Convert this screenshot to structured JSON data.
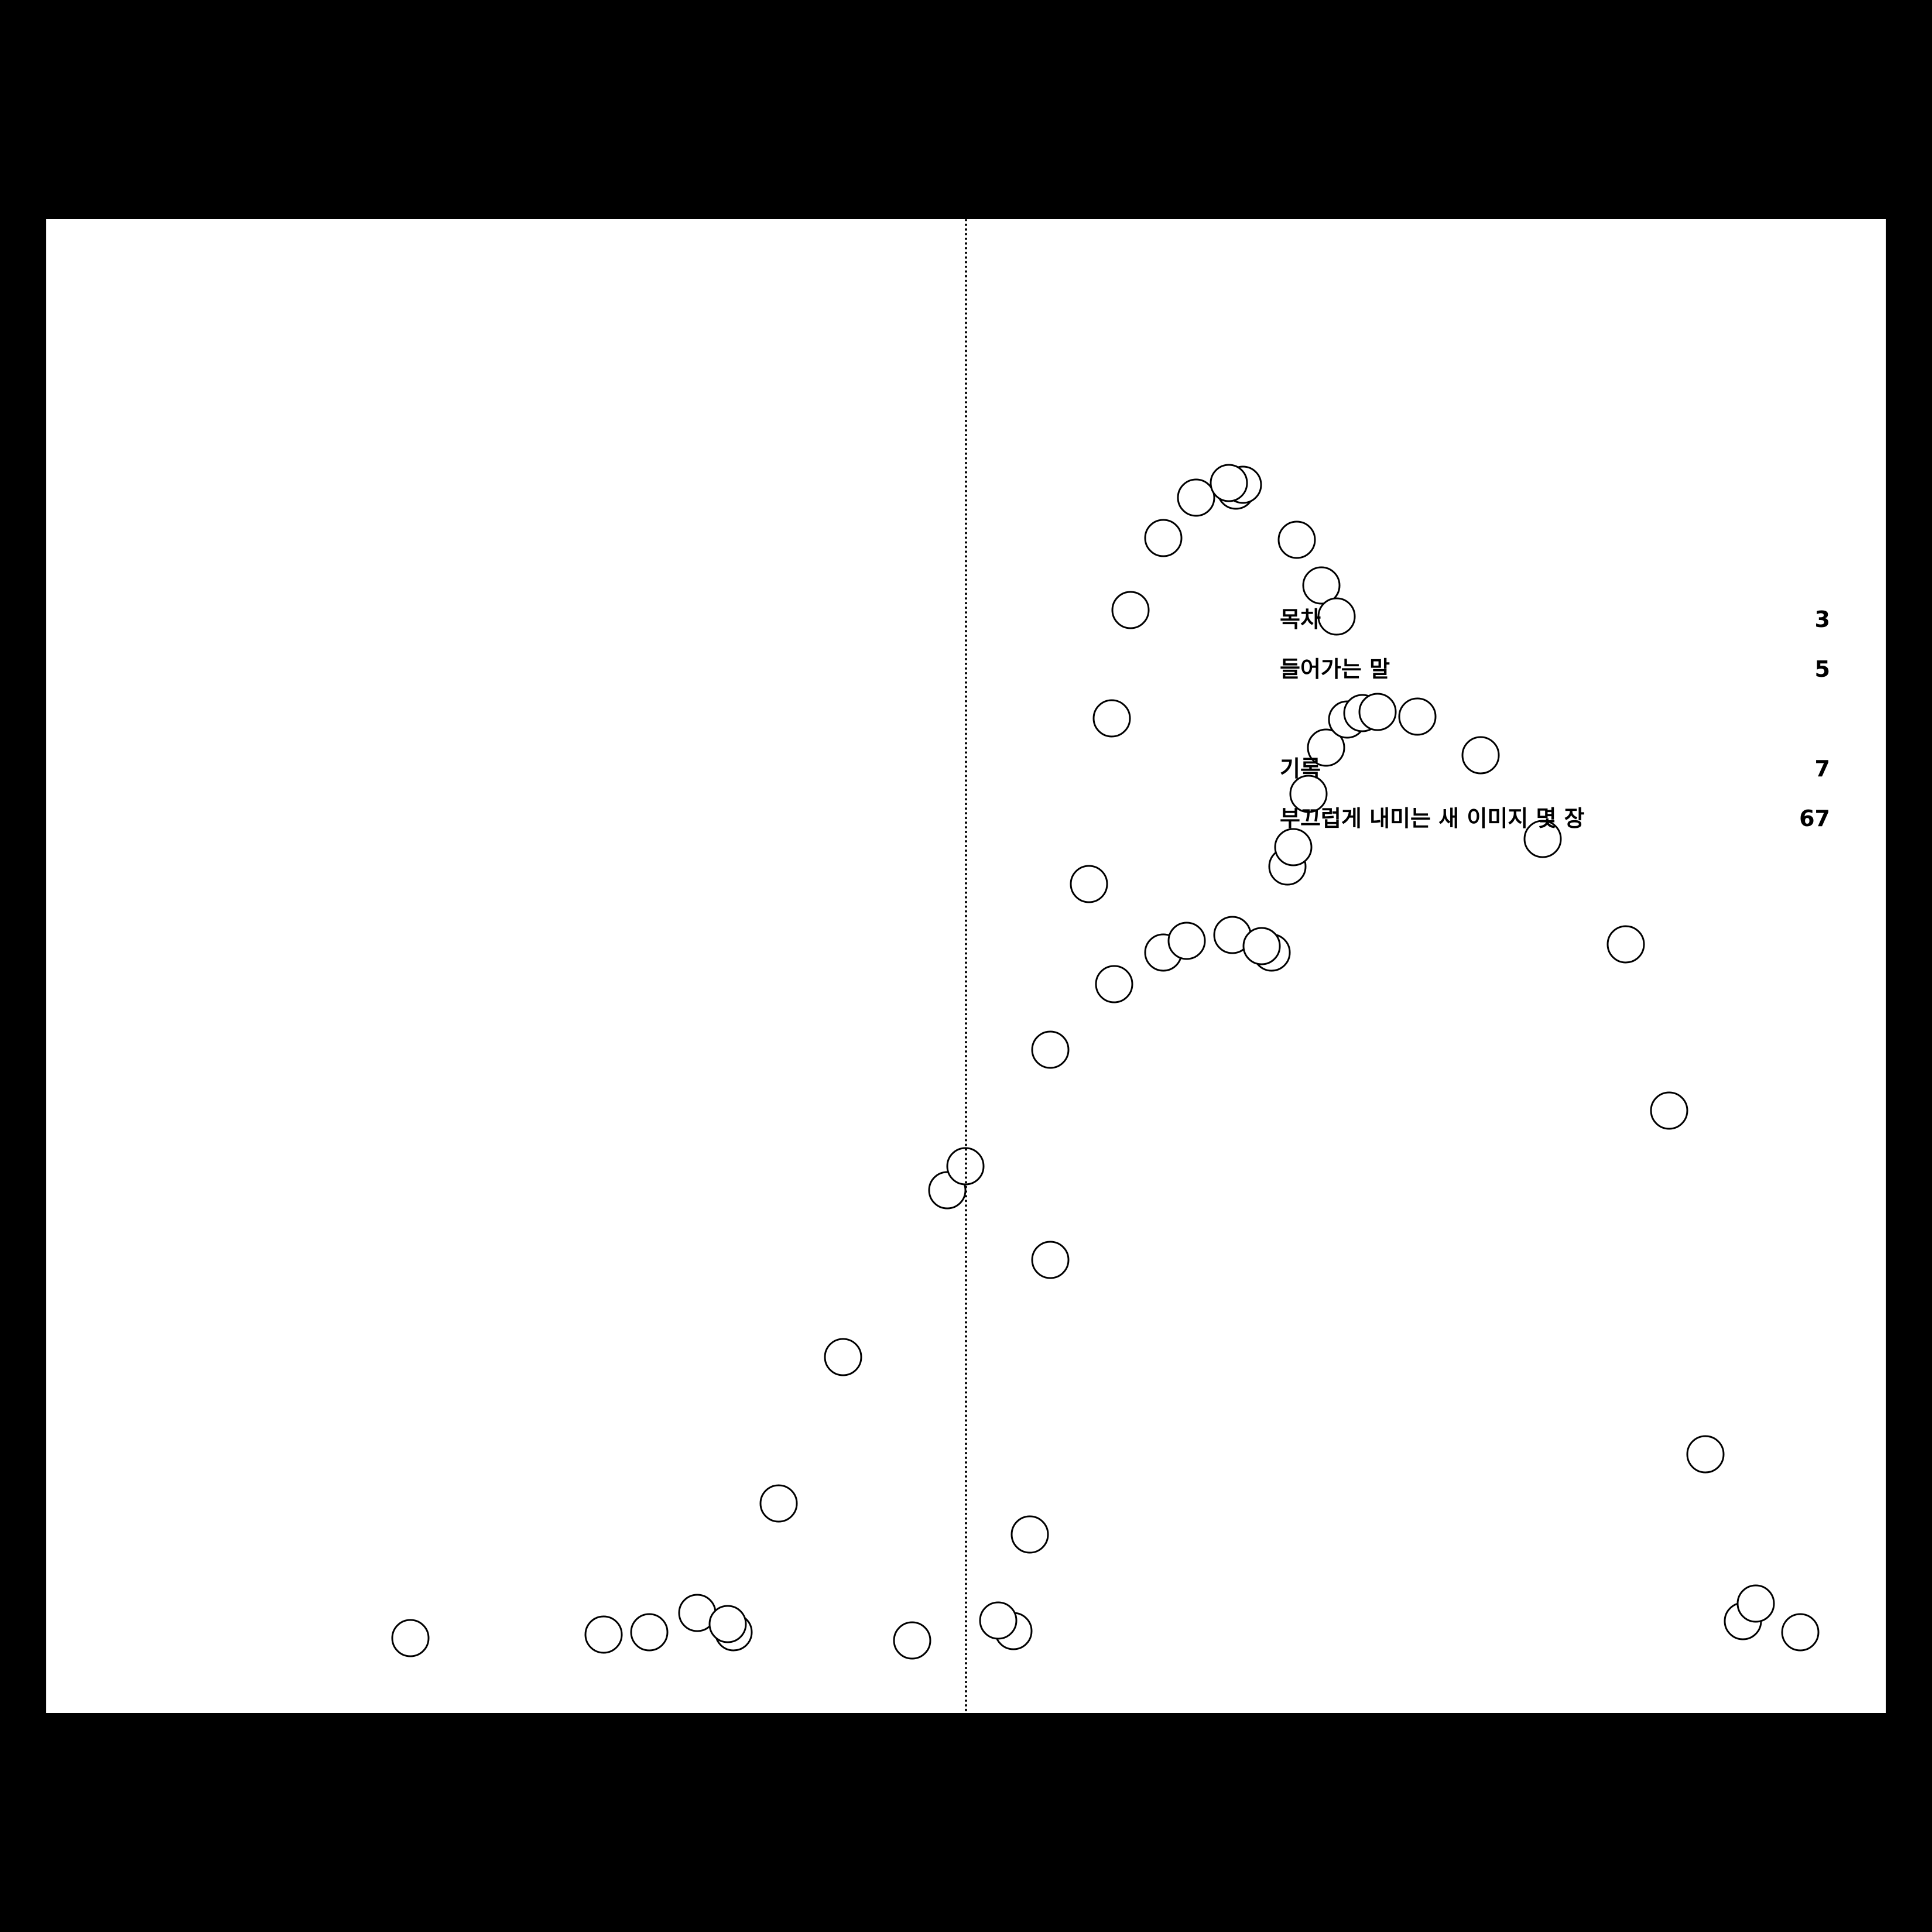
{
  "colors": {
    "background": "#000000",
    "page": "#ffffff",
    "ink": "#000000"
  },
  "toc": {
    "items": [
      {
        "title": "목차",
        "page": "3"
      },
      {
        "title": "들어가는 말",
        "page": "5"
      },
      {
        "title": "기록",
        "page": "7"
      },
      {
        "title": "부끄럽게 내미는 새 이미지 몇 장",
        "page": "67"
      }
    ]
  }
}
